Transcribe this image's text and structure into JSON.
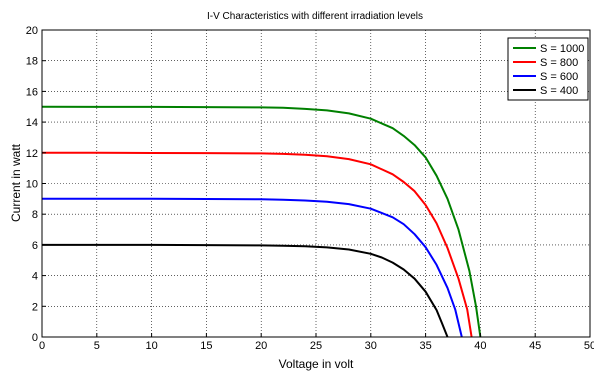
{
  "chart_data": {
    "type": "line",
    "title": "I-V Characteristics with different irradiation levels",
    "xlabel": "Voltage in volt",
    "ylabel": "Current in watt",
    "xlim": [
      0,
      50
    ],
    "ylim": [
      0,
      20
    ],
    "xticks": [
      "0",
      "5",
      "10",
      "15",
      "20",
      "25",
      "30",
      "35",
      "40",
      "45",
      "50"
    ],
    "yticks": [
      "0",
      "2",
      "4",
      "6",
      "8",
      "10",
      "12",
      "14",
      "16",
      "18",
      "20"
    ],
    "grid": true,
    "legend_position": "top-right",
    "series": [
      {
        "name": "S = 1000",
        "color": "#008000",
        "points": [
          [
            0,
            15.0
          ],
          [
            5,
            14.99
          ],
          [
            10,
            14.99
          ],
          [
            15,
            14.98
          ],
          [
            20,
            14.96
          ],
          [
            22,
            14.93
          ],
          [
            24,
            14.86
          ],
          [
            26,
            14.76
          ],
          [
            28,
            14.57
          ],
          [
            30,
            14.22
          ],
          [
            32,
            13.6
          ],
          [
            33,
            13.1
          ],
          [
            34,
            12.5
          ],
          [
            35,
            11.7
          ],
          [
            36,
            10.5
          ],
          [
            37,
            9.0
          ],
          [
            38,
            7.0
          ],
          [
            39,
            4.3
          ],
          [
            39.6,
            2.0
          ],
          [
            40,
            0.0
          ]
        ]
      },
      {
        "name": "S = 800",
        "color": "#ff0000",
        "points": [
          [
            0,
            12.0
          ],
          [
            5,
            12.0
          ],
          [
            10,
            11.99
          ],
          [
            15,
            11.98
          ],
          [
            20,
            11.96
          ],
          [
            22,
            11.93
          ],
          [
            24,
            11.87
          ],
          [
            26,
            11.77
          ],
          [
            28,
            11.59
          ],
          [
            30,
            11.25
          ],
          [
            32,
            10.6
          ],
          [
            33,
            10.1
          ],
          [
            34,
            9.5
          ],
          [
            35,
            8.6
          ],
          [
            36,
            7.4
          ],
          [
            37,
            5.8
          ],
          [
            38,
            3.8
          ],
          [
            38.8,
            1.8
          ],
          [
            39.2,
            0.0
          ]
        ]
      },
      {
        "name": "S = 600",
        "color": "#0000ff",
        "points": [
          [
            0,
            9.0
          ],
          [
            5,
            9.0
          ],
          [
            10,
            9.0
          ],
          [
            15,
            8.99
          ],
          [
            20,
            8.97
          ],
          [
            22,
            8.94
          ],
          [
            24,
            8.89
          ],
          [
            26,
            8.81
          ],
          [
            28,
            8.66
          ],
          [
            30,
            8.36
          ],
          [
            32,
            7.8
          ],
          [
            33,
            7.35
          ],
          [
            34,
            6.7
          ],
          [
            35,
            5.85
          ],
          [
            36,
            4.7
          ],
          [
            37,
            3.2
          ],
          [
            37.7,
            1.8
          ],
          [
            38.3,
            0.0
          ]
        ]
      },
      {
        "name": "S = 400",
        "color": "#000000",
        "points": [
          [
            0,
            6.0
          ],
          [
            5,
            6.0
          ],
          [
            10,
            6.0
          ],
          [
            15,
            5.99
          ],
          [
            20,
            5.97
          ],
          [
            22,
            5.95
          ],
          [
            24,
            5.91
          ],
          [
            26,
            5.84
          ],
          [
            28,
            5.7
          ],
          [
            30,
            5.42
          ],
          [
            31,
            5.18
          ],
          [
            32,
            4.85
          ],
          [
            33,
            4.4
          ],
          [
            34,
            3.8
          ],
          [
            35,
            2.95
          ],
          [
            36,
            1.75
          ],
          [
            36.5,
            0.9
          ],
          [
            37,
            0.0
          ]
        ]
      }
    ]
  }
}
